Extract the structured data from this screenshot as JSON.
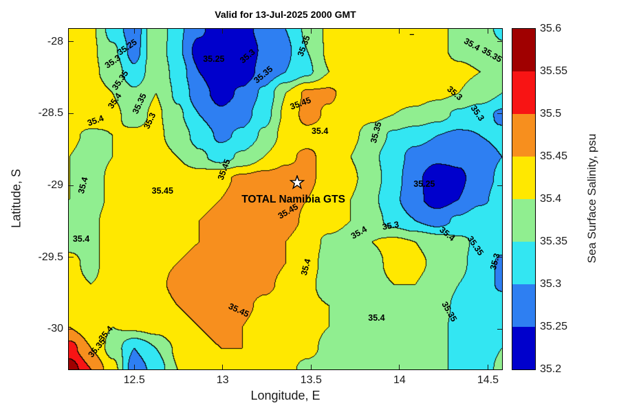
{
  "title": "Valid for 13-Jul-2025 2000 GMT",
  "axes": {
    "xlabel": "Longitude, E",
    "ylabel": "Latitude, S",
    "xlim": [
      12.13,
      14.58
    ],
    "ylim": [
      -30.28,
      -27.91
    ],
    "xticks": [
      12.5,
      13,
      13.5,
      14,
      14.5
    ],
    "xtick_labels": [
      "12.5",
      "13",
      "13.5",
      "14",
      "14.5"
    ],
    "yticks": [
      -28,
      -28.5,
      -29,
      -29.5,
      -30
    ],
    "ytick_labels": [
      "-28",
      "-28.5",
      "-29",
      "-29.5",
      "-30"
    ]
  },
  "colorbar": {
    "label": "Sea Surface Salinity, psu",
    "range": [
      35.2,
      35.6
    ],
    "tick_values": [
      35.2,
      35.25,
      35.3,
      35.35,
      35.4,
      35.45,
      35.5,
      35.55,
      35.6
    ],
    "tick_labels": [
      "35.2",
      "35.25",
      "35.3",
      "35.35",
      "35.4",
      "35.45",
      "35.5",
      "35.55",
      "35.6"
    ]
  },
  "chart_data": {
    "type": "heatmap",
    "subtype": "filled-contour",
    "title": "Valid for 13-Jul-2025 2000 GMT",
    "xlabel": "Longitude, E",
    "ylabel": "Latitude, S",
    "levels": [
      35.2,
      35.25,
      35.3,
      35.35,
      35.4,
      35.45,
      35.5,
      35.55,
      35.6
    ],
    "colors": [
      "#0000CC",
      "#2E7FF2",
      "#33E6F2",
      "#90EE90",
      "#FFE800",
      "#F78F1E",
      "#F81414",
      "#A00000"
    ],
    "x": [
      12.13,
      12.25,
      12.38,
      12.5,
      12.62,
      12.74,
      12.87,
      12.99,
      13.11,
      13.23,
      13.36,
      13.48,
      13.6,
      13.72,
      13.85,
      13.97,
      14.09,
      14.21,
      14.34,
      14.46,
      14.58
    ],
    "y": [
      -27.91,
      -28.06,
      -28.21,
      -28.36,
      -28.5,
      -28.65,
      -28.8,
      -28.95,
      -29.1,
      -29.24,
      -29.39,
      -29.54,
      -29.69,
      -29.84,
      -29.98,
      -30.13,
      -30.28
    ],
    "values": [
      [
        35.42,
        35.41,
        35.33,
        35.27,
        35.4,
        35.31,
        35.26,
        35.21,
        35.23,
        35.27,
        35.3,
        35.36,
        35.41,
        35.42,
        35.42,
        35.42,
        35.42,
        35.41,
        35.39,
        35.37,
        35.34
      ],
      [
        35.42,
        35.41,
        35.36,
        35.28,
        35.39,
        35.31,
        35.23,
        35.2,
        35.21,
        35.26,
        35.29,
        35.35,
        35.41,
        35.42,
        35.43,
        35.43,
        35.42,
        35.41,
        35.39,
        35.38,
        35.36
      ],
      [
        35.42,
        35.41,
        35.38,
        35.31,
        35.39,
        35.33,
        35.25,
        35.21,
        35.22,
        35.27,
        35.3,
        35.34,
        35.4,
        35.42,
        35.43,
        35.43,
        35.43,
        35.42,
        35.41,
        35.4,
        35.39
      ],
      [
        35.42,
        35.42,
        35.4,
        35.36,
        35.4,
        35.34,
        35.27,
        35.23,
        35.26,
        35.31,
        35.4,
        35.46,
        35.46,
        35.42,
        35.42,
        35.42,
        35.42,
        35.41,
        35.4,
        35.38,
        35.35
      ],
      [
        35.43,
        35.43,
        35.41,
        35.38,
        35.41,
        35.36,
        35.3,
        35.26,
        35.28,
        35.33,
        35.41,
        35.47,
        35.44,
        35.42,
        35.41,
        35.4,
        35.39,
        35.37,
        35.34,
        35.32,
        35.29
      ],
      [
        35.41,
        35.39,
        35.4,
        35.41,
        35.41,
        35.38,
        35.33,
        35.29,
        35.31,
        35.36,
        35.42,
        35.43,
        35.43,
        35.41,
        35.38,
        35.34,
        35.32,
        35.3,
        35.29,
        35.3,
        35.31
      ],
      [
        35.4,
        35.38,
        35.4,
        35.42,
        35.42,
        35.4,
        35.36,
        35.33,
        35.36,
        35.4,
        35.44,
        35.46,
        35.43,
        35.4,
        35.36,
        35.32,
        35.28,
        35.26,
        35.26,
        35.28,
        35.3
      ],
      [
        35.4,
        35.38,
        35.41,
        35.42,
        35.42,
        35.43,
        35.43,
        35.44,
        35.46,
        35.47,
        35.47,
        35.46,
        35.43,
        35.41,
        35.37,
        35.32,
        35.26,
        35.22,
        35.24,
        35.28,
        35.31
      ],
      [
        35.4,
        35.38,
        35.41,
        35.43,
        35.43,
        35.44,
        35.44,
        35.45,
        35.47,
        35.48,
        35.47,
        35.45,
        35.42,
        35.4,
        35.36,
        35.31,
        35.26,
        35.23,
        35.25,
        35.29,
        35.32
      ],
      [
        35.39,
        35.39,
        35.42,
        35.43,
        35.43,
        35.44,
        35.45,
        35.46,
        35.48,
        35.48,
        35.47,
        35.44,
        35.42,
        35.4,
        35.37,
        35.33,
        35.3,
        35.28,
        35.31,
        35.34,
        35.33
      ],
      [
        35.39,
        35.39,
        35.42,
        35.43,
        35.43,
        35.44,
        35.45,
        35.47,
        35.48,
        35.47,
        35.45,
        35.42,
        35.39,
        35.38,
        35.4,
        35.41,
        35.4,
        35.38,
        35.36,
        35.34,
        35.32
      ],
      [
        35.41,
        35.39,
        35.42,
        35.43,
        35.44,
        35.45,
        35.46,
        35.47,
        35.48,
        35.47,
        35.45,
        35.42,
        35.38,
        35.37,
        35.39,
        35.41,
        35.41,
        35.39,
        35.36,
        35.33,
        35.29
      ],
      [
        35.41,
        35.4,
        35.41,
        35.43,
        35.44,
        35.46,
        35.47,
        35.48,
        35.48,
        35.46,
        35.44,
        35.41,
        35.38,
        35.37,
        35.39,
        35.4,
        35.4,
        35.38,
        35.35,
        35.33,
        35.29
      ],
      [
        35.42,
        35.41,
        35.41,
        35.42,
        35.43,
        35.45,
        35.46,
        35.47,
        35.46,
        35.44,
        35.43,
        35.41,
        35.4,
        35.38,
        35.37,
        35.39,
        35.39,
        35.37,
        35.34,
        35.32,
        35.33
      ],
      [
        35.45,
        35.42,
        35.4,
        35.41,
        35.42,
        35.44,
        35.45,
        35.46,
        35.45,
        35.43,
        35.42,
        35.41,
        35.4,
        35.38,
        35.37,
        35.38,
        35.38,
        35.36,
        35.34,
        35.32,
        35.34
      ],
      [
        35.52,
        35.45,
        35.38,
        35.3,
        35.35,
        35.41,
        35.44,
        35.45,
        35.45,
        35.43,
        35.42,
        35.41,
        35.39,
        35.38,
        35.38,
        35.39,
        35.38,
        35.36,
        35.34,
        35.33,
        35.35
      ],
      [
        35.58,
        35.5,
        35.42,
        35.27,
        35.32,
        35.4,
        35.43,
        35.44,
        35.44,
        35.42,
        35.41,
        35.39,
        35.38,
        35.37,
        35.38,
        35.39,
        35.38,
        35.36,
        35.34,
        35.33,
        35.36
      ]
    ],
    "contour_labels": [
      {
        "text": "35.25",
        "lon": 12.46,
        "lat": -28.04,
        "rot": -35
      },
      {
        "text": "35.3",
        "lon": 12.38,
        "lat": -28.14,
        "rot": -35
      },
      {
        "text": "35.35",
        "lon": 12.42,
        "lat": -28.27,
        "rot": -55
      },
      {
        "text": "35.4",
        "lon": 12.39,
        "lat": -28.41,
        "rot": -55
      },
      {
        "text": "35.4",
        "lon": 12.28,
        "lat": -28.55,
        "rot": -20
      },
      {
        "text": "35.35",
        "lon": 12.53,
        "lat": -28.43,
        "rot": -65
      },
      {
        "text": "35.3",
        "lon": 12.59,
        "lat": -28.55,
        "rot": -65
      },
      {
        "text": "35.25",
        "lon": 12.95,
        "lat": -28.12,
        "rot": 0
      },
      {
        "text": "35.3",
        "lon": 13.14,
        "lat": -28.1,
        "rot": -40
      },
      {
        "text": "35.35",
        "lon": 13.23,
        "lat": -28.23,
        "rot": -40
      },
      {
        "text": "35.35",
        "lon": 13.46,
        "lat": -28.03,
        "rot": -70
      },
      {
        "text": "35.45",
        "lon": 13.44,
        "lat": -28.43,
        "rot": -20
      },
      {
        "text": "35.4",
        "lon": 13.55,
        "lat": -28.62,
        "rot": 0
      },
      {
        "text": "35.45",
        "lon": 13.01,
        "lat": -28.89,
        "rot": -70
      },
      {
        "text": "35.45",
        "lon": 12.66,
        "lat": -29.04,
        "rot": 0
      },
      {
        "text": "35.45",
        "lon": 13.37,
        "lat": -29.18,
        "rot": -30
      },
      {
        "text": "35.45",
        "lon": 13.09,
        "lat": -29.87,
        "rot": 25
      },
      {
        "text": "35.4",
        "lon": 13.47,
        "lat": -29.57,
        "rot": -75
      },
      {
        "text": "35.4",
        "lon": 12.21,
        "lat": -29.0,
        "rot": -75
      },
      {
        "text": "35.4",
        "lon": 12.2,
        "lat": -29.37,
        "rot": 0
      },
      {
        "text": "35.35",
        "lon": 13.87,
        "lat": -28.63,
        "rot": -75
      },
      {
        "text": "35.3",
        "lon": 14.31,
        "lat": -28.36,
        "rot": 40
      },
      {
        "text": "35.3",
        "lon": 14.44,
        "lat": -28.5,
        "rot": 55
      },
      {
        "text": "35.25",
        "lon": 14.14,
        "lat": -28.99,
        "rot": 0
      },
      {
        "text": "35.3",
        "lon": 13.95,
        "lat": -29.28,
        "rot": -10
      },
      {
        "text": "35.4",
        "lon": 13.77,
        "lat": -29.33,
        "rot": -30
      },
      {
        "text": "35.4",
        "lon": 14.27,
        "lat": -29.34,
        "rot": 40
      },
      {
        "text": "35.35",
        "lon": 14.43,
        "lat": -29.42,
        "rot": 55
      },
      {
        "text": "35.3",
        "lon": 14.54,
        "lat": -29.53,
        "rot": -75
      },
      {
        "text": "35.35",
        "lon": 14.28,
        "lat": -29.88,
        "rot": 60
      },
      {
        "text": "35.4",
        "lon": 13.87,
        "lat": -29.92,
        "rot": 0
      },
      {
        "text": "35.4",
        "lon": 14.41,
        "lat": -28.02,
        "rot": 30
      },
      {
        "text": "35.35",
        "lon": 14.52,
        "lat": -28.09,
        "rot": 30
      },
      {
        "text": "35.4",
        "lon": 12.34,
        "lat": -30.03,
        "rot": -50
      },
      {
        "text": "35.35",
        "lon": 12.29,
        "lat": -30.13,
        "rot": -50
      },
      {
        "text": "–",
        "lon": 14.07,
        "lat": -27.95,
        "rot": 0
      }
    ],
    "marker": {
      "symbol": "star",
      "lon": 13.42,
      "lat": -28.98,
      "label": "TOTAL Namibia GTS",
      "label_lon": 13.4,
      "label_lat": -29.1
    }
  }
}
